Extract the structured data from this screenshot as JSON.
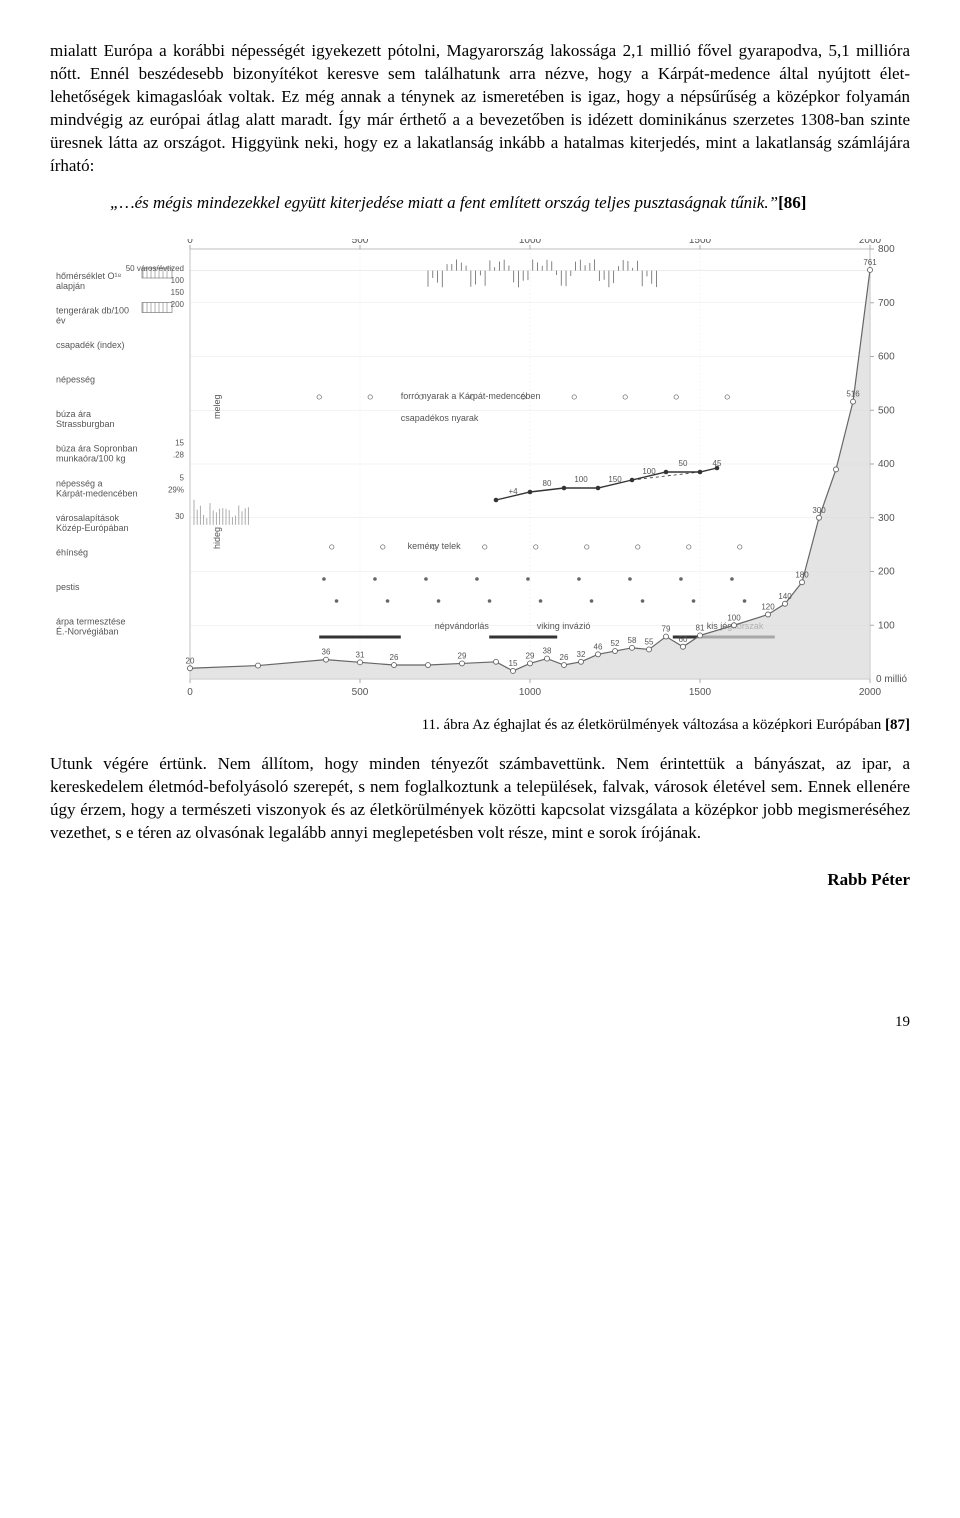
{
  "para1": "mialatt Európa a korábbi népességét igyekezett pótolni, Magyarország lakossága 2,1 millió fővel gyarapodva, 5,1 millióra nőtt. Ennél beszédesebb bizonyítékot keresve sem találhatunk arra nézve, hogy a Kárpát-medence által nyújtott élet-lehetőségek kimagaslóak voltak. Ez még annak a ténynek az ismeretében is igaz, hogy a népsűrűség a középkor folyamán mindvégig az európai átlag alatt maradt. Így már érthető a a bevezetőben is idézett dominikánus szerzetes 1308-ban szinte üresnek látta az országot. Higgyünk neki, hogy ez a lakatlanság inkább a hatalmas kiterjedés, mint a lakatlanság számlájára írható:",
  "quote_text": "„…és mégis mindezekkel együtt kiterjedése miatt a fent említett ország teljes pusztaságnak tűnik.”",
  "quote_ref": "[86]",
  "caption": "11. ábra  Az éghajlat és az életkörülmények változása a középkori Európában ",
  "caption_ref": "[87]",
  "para2": "Utunk végére értünk. Nem állítom, hogy minden tényezőt számbavettünk. Nem érintettük a bányászat, az ipar, a kereskedelem életmód-befolyásoló szerepét, s nem foglalkoztunk a települések, falvak, városok életével sem. Ennek ellenére úgy érzem, hogy a természeti viszonyok és az életkörülmények közötti kapcsolat vizsgálata a középkor jobb megismeréséhez vezethet, s e téren az olvasónak legalább annyi meglepetésben volt része, mint e sorok írójának.",
  "author": "Rabb Péter",
  "pagenum": "19",
  "chart": {
    "type": "composite-timeline",
    "background_color": "#ffffff",
    "grid_color": "#aaaaaa",
    "line_color": "#666666",
    "fill_color": "#d8d8d8",
    "font_family": "Arial",
    "x_axis": {
      "min": 0,
      "max": 2000,
      "ticks": [
        0,
        500,
        1000,
        1500,
        2000
      ]
    },
    "y_right": {
      "min": 0,
      "max": 800,
      "ticks": [
        100,
        200,
        300,
        400,
        500,
        600,
        700,
        800
      ],
      "unit": "millió fő"
    },
    "left_labels": [
      "hőmérséklet O¹⁸ alapján",
      "tengerárak db/100 év",
      "csapadék (index)",
      "népesség",
      "búza ára Strassburgban",
      "búza ára Sopronban munkaóra/100 kg",
      "népesség a Kárpát-medencében",
      "városalapítások Közép-Európában",
      "éhínség",
      "pestis",
      "árpa termesztése É.-Norvégiában"
    ],
    "left_scale_nums": [
      "50 város/évtized",
      "100",
      "150",
      "200",
      "15",
      "5",
      "30",
      ".28",
      "29%"
    ],
    "annotations": [
      "forró nyarak a Kárpát-medencében",
      "csapadékos nyarak",
      "kemény telek",
      "népvándorlás",
      "viking invázió",
      "kis jégkorszak",
      "meleg",
      "hideg"
    ],
    "population_europe": {
      "years": [
        0,
        200,
        400,
        500,
        600,
        700,
        800,
        900,
        950,
        1000,
        1050,
        1100,
        1150,
        1200,
        1250,
        1300,
        1350,
        1400,
        1450,
        1500,
        1600,
        1700,
        1750,
        1800,
        1850,
        1900,
        1950,
        2000
      ],
      "values": [
        20,
        25,
        36,
        31,
        26,
        26,
        29,
        32,
        15,
        29,
        38,
        26,
        32,
        46,
        52,
        58,
        55,
        79,
        60,
        81,
        100,
        120,
        140,
        180,
        300,
        390,
        516,
        761
      ],
      "value_labels": [
        "20",
        "",
        "36",
        "31",
        "26",
        "",
        "29",
        "",
        "15",
        "29",
        "38",
        "26",
        "32",
        "46",
        "52",
        "58",
        "55",
        "79",
        "60",
        "81",
        "100",
        "120",
        "140",
        "180",
        "300",
        "",
        "516",
        "761"
      ]
    },
    "population_carpathian": {
      "years": [
        900,
        1000,
        1100,
        1200,
        1300,
        1400,
        1500,
        1550
      ],
      "values": [
        0.5,
        1.5,
        2.0,
        2.0,
        3.0,
        4.0,
        4.0,
        4.5
      ],
      "annotations": [
        "+4",
        "80",
        "100",
        "150",
        "100",
        "50",
        "45"
      ]
    },
    "bars_top": {
      "period": [
        700,
        1400
      ],
      "pattern": "dense-vertical-bars"
    }
  }
}
